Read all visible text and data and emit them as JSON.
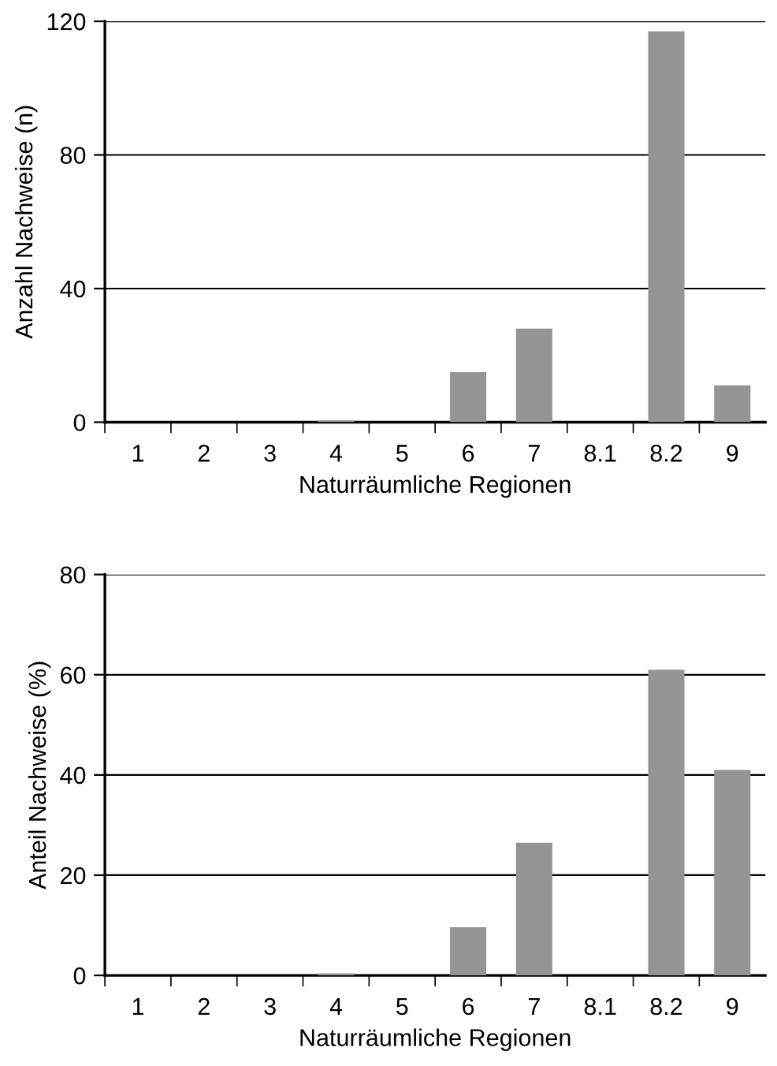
{
  "chart_data": [
    {
      "type": "bar",
      "xlabel": "Naturräumliche Regionen",
      "ylabel": "Anzahl Nachweise (n)",
      "categories": [
        "1",
        "2",
        "3",
        "4",
        "5",
        "6",
        "7",
        "8.1",
        "8.2",
        "9"
      ],
      "values": [
        0,
        0,
        0,
        0.5,
        0,
        15,
        28,
        0,
        117,
        11
      ],
      "color": "#949494",
      "ylim": [
        0,
        120
      ],
      "yticks": [
        0,
        40,
        80,
        120
      ],
      "grid": "y",
      "legend": false
    },
    {
      "type": "bar",
      "xlabel": "Naturräumliche Regionen",
      "ylabel": "Anteil Nachweise (%)",
      "categories": [
        "1",
        "2",
        "3",
        "4",
        "5",
        "6",
        "7",
        "8.1",
        "8.2",
        "9"
      ],
      "values": [
        0,
        0,
        0,
        0.4,
        0,
        9.6,
        26.5,
        0,
        61,
        41
      ],
      "color": "#949494",
      "ylim": [
        0,
        80
      ],
      "yticks": [
        0,
        20,
        40,
        60,
        80
      ],
      "grid": "y",
      "legend": false
    }
  ]
}
